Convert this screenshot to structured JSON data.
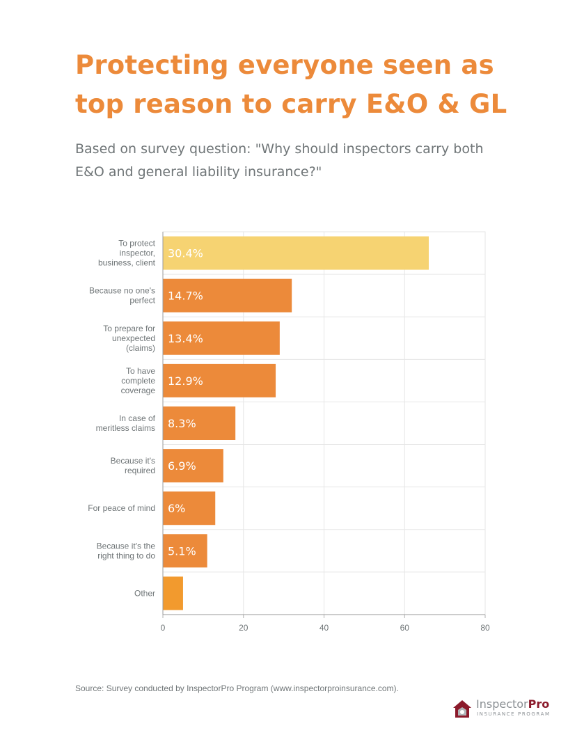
{
  "title": "Protecting everyone seen as top reason to carry E&O & GL",
  "subtitle": "Based on survey question: \"Why should inspectors carry both E&O and general liability insurance?\"",
  "source": "Source: Survey conducted by InspectorPro Program (www.inspectorproinsurance.com).",
  "logo": {
    "brand_light": "Inspector",
    "brand_bold": "Pro",
    "tagline": "INSURANCE PROGRAM"
  },
  "colors": {
    "highlight": "#f6d372",
    "bar": "#ec8a3a",
    "other": "#f29a2e",
    "title": "#ec8a3a",
    "text": "#6f7577"
  },
  "chart_data": {
    "type": "bar",
    "orientation": "horizontal",
    "categories": [
      [
        "To protect",
        "inspector,",
        "business, client"
      ],
      [
        "Because no one's",
        "perfect"
      ],
      [
        "To prepare for",
        "unexpected",
        "(claims)"
      ],
      [
        "To have",
        "complete",
        "coverage"
      ],
      [
        "In case of",
        "meritless claims"
      ],
      [
        "Because it's",
        "required"
      ],
      [
        "For peace of mind"
      ],
      [
        "Because it's the",
        "right thing to do"
      ],
      [
        "Other"
      ]
    ],
    "values": [
      66,
      32,
      29,
      28,
      18,
      15,
      13,
      11,
      5
    ],
    "data_labels": [
      "30.4%",
      "14.7%",
      "13.4%",
      "12.9%",
      "8.3%",
      "6.9%",
      "6%",
      "5.1%",
      ""
    ],
    "xlim": [
      0,
      80
    ],
    "xticks": [
      "0",
      "20",
      "40",
      "60",
      "80"
    ],
    "grid": true
  }
}
